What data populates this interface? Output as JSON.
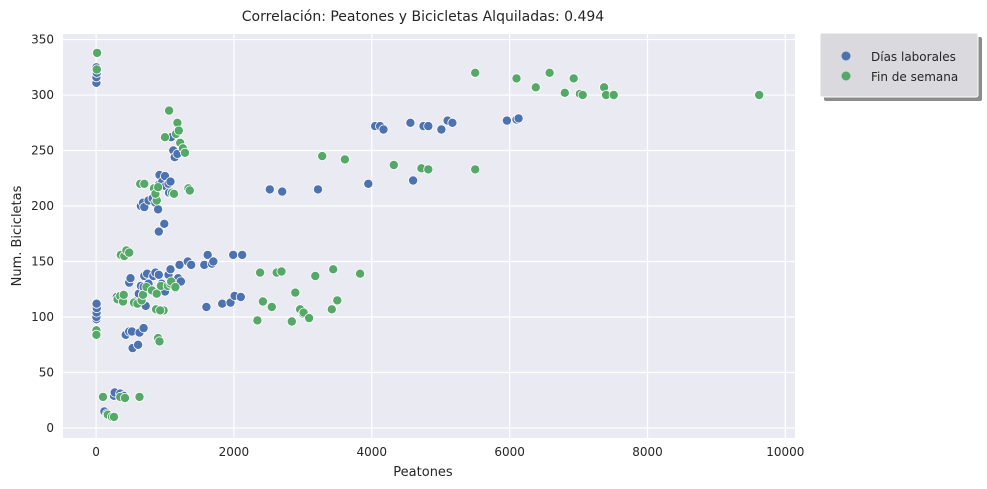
{
  "chart_data": {
    "type": "scatter",
    "title": "Correlación: Peatones y Bicicletas Alquiladas: 0.494",
    "xlabel": "Peatones",
    "ylabel": "Num. Bicicletas",
    "xlim": [
      -480,
      10140
    ],
    "ylim": [
      -9,
      355
    ],
    "xticks": [
      0,
      2000,
      4000,
      6000,
      8000,
      10000
    ],
    "yticks": [
      0,
      50,
      100,
      150,
      200,
      250,
      300,
      350
    ],
    "grid": true,
    "legend_position": "outside-top-right",
    "colors": {
      "weekday": "#4c72b0",
      "weekend": "#55a868",
      "plot_bg": "#eaeaf2",
      "grid": "#ffffff"
    },
    "series": [
      {
        "name": "Días laborales",
        "points": [
          [
            5,
            311
          ],
          [
            5,
            316
          ],
          [
            10,
            320
          ],
          [
            5,
            325
          ],
          [
            5,
            98
          ],
          [
            5,
            100
          ],
          [
            8,
            104
          ],
          [
            10,
            108
          ],
          [
            8,
            112
          ],
          [
            120,
            15
          ],
          [
            160,
            13
          ],
          [
            260,
            29
          ],
          [
            270,
            32
          ],
          [
            350,
            31
          ],
          [
            400,
            29
          ],
          [
            430,
            84
          ],
          [
            480,
            87
          ],
          [
            520,
            87
          ],
          [
            530,
            72
          ],
          [
            610,
            75
          ],
          [
            630,
            86
          ],
          [
            690,
            90
          ],
          [
            300,
            118
          ],
          [
            350,
            119
          ],
          [
            480,
            131
          ],
          [
            500,
            135
          ],
          [
            570,
            114
          ],
          [
            620,
            121
          ],
          [
            650,
            128
          ],
          [
            690,
            127
          ],
          [
            700,
            137
          ],
          [
            720,
            110
          ],
          [
            740,
            139
          ],
          [
            760,
            130
          ],
          [
            830,
            137
          ],
          [
            860,
            140
          ],
          [
            910,
            138
          ],
          [
            950,
            130
          ],
          [
            1000,
            123
          ],
          [
            1050,
            138
          ],
          [
            1080,
            143
          ],
          [
            1120,
            130
          ],
          [
            1150,
            126
          ],
          [
            1190,
            135
          ],
          [
            1230,
            132
          ],
          [
            1210,
            147
          ],
          [
            1330,
            150
          ],
          [
            1380,
            147
          ],
          [
            1570,
            147
          ],
          [
            1620,
            156
          ],
          [
            1680,
            148
          ],
          [
            1700,
            150
          ],
          [
            1600,
            109
          ],
          [
            1830,
            112
          ],
          [
            1950,
            113
          ],
          [
            2010,
            119
          ],
          [
            2100,
            118
          ],
          [
            1990,
            156
          ],
          [
            2120,
            156
          ],
          [
            650,
            200
          ],
          [
            680,
            203
          ],
          [
            700,
            199
          ],
          [
            760,
            205
          ],
          [
            820,
            207
          ],
          [
            860,
            203
          ],
          [
            900,
            197
          ],
          [
            910,
            219
          ],
          [
            920,
            228
          ],
          [
            960,
            222
          ],
          [
            1000,
            227
          ],
          [
            1010,
            218
          ],
          [
            1050,
            220
          ],
          [
            1080,
            222
          ],
          [
            1090,
            262
          ],
          [
            1120,
            250
          ],
          [
            1140,
            244
          ],
          [
            1180,
            247
          ],
          [
            1200,
            268
          ],
          [
            910,
            177
          ],
          [
            990,
            184
          ],
          [
            1060,
            212
          ],
          [
            2520,
            215
          ],
          [
            2700,
            213
          ],
          [
            3220,
            215
          ],
          [
            3950,
            220
          ],
          [
            4050,
            272
          ],
          [
            4120,
            272
          ],
          [
            4170,
            269
          ],
          [
            4560,
            275
          ],
          [
            4600,
            223
          ],
          [
            4750,
            272
          ],
          [
            4820,
            272
          ],
          [
            5010,
            269
          ],
          [
            5100,
            277
          ],
          [
            5170,
            275
          ],
          [
            5960,
            277
          ],
          [
            6100,
            278
          ],
          [
            6130,
            279
          ]
        ]
      },
      {
        "name": "Fin de semana",
        "points": [
          [
            15,
            338
          ],
          [
            15,
            323
          ],
          [
            10,
            323
          ],
          [
            5,
            88
          ],
          [
            5,
            84
          ],
          [
            100,
            28
          ],
          [
            170,
            12
          ],
          [
            230,
            10
          ],
          [
            260,
            10
          ],
          [
            350,
            28
          ],
          [
            420,
            27
          ],
          [
            630,
            28
          ],
          [
            310,
            116
          ],
          [
            350,
            119
          ],
          [
            390,
            114
          ],
          [
            400,
            120
          ],
          [
            360,
            156
          ],
          [
            410,
            155
          ],
          [
            440,
            160
          ],
          [
            480,
            158
          ],
          [
            550,
            113
          ],
          [
            600,
            112
          ],
          [
            660,
            115
          ],
          [
            680,
            120
          ],
          [
            730,
            127
          ],
          [
            810,
            124
          ],
          [
            880,
            121
          ],
          [
            900,
            81
          ],
          [
            920,
            78
          ],
          [
            940,
            128
          ],
          [
            980,
            106
          ],
          [
            1040,
            128
          ],
          [
            1080,
            130
          ],
          [
            1090,
            132
          ],
          [
            1150,
            127
          ],
          [
            870,
            107
          ],
          [
            930,
            106
          ],
          [
            640,
            220
          ],
          [
            700,
            220
          ],
          [
            840,
            216
          ],
          [
            880,
            205
          ],
          [
            860,
            211
          ],
          [
            900,
            217
          ],
          [
            1000,
            262
          ],
          [
            1060,
            286
          ],
          [
            1100,
            212
          ],
          [
            1130,
            211
          ],
          [
            1160,
            265
          ],
          [
            1180,
            275
          ],
          [
            1200,
            268
          ],
          [
            1220,
            257
          ],
          [
            1260,
            252
          ],
          [
            1290,
            248
          ],
          [
            1340,
            216
          ],
          [
            1360,
            214
          ],
          [
            2340,
            97
          ],
          [
            2380,
            140
          ],
          [
            2420,
            114
          ],
          [
            2550,
            109
          ],
          [
            2620,
            140
          ],
          [
            2690,
            141
          ],
          [
            2840,
            96
          ],
          [
            2890,
            122
          ],
          [
            2960,
            107
          ],
          [
            3000,
            103
          ],
          [
            3010,
            104
          ],
          [
            3090,
            99
          ],
          [
            3180,
            137
          ],
          [
            3280,
            245
          ],
          [
            3420,
            107
          ],
          [
            3440,
            143
          ],
          [
            3500,
            115
          ],
          [
            3610,
            242
          ],
          [
            3830,
            139
          ],
          [
            4320,
            237
          ],
          [
            4720,
            234
          ],
          [
            4820,
            233
          ],
          [
            5500,
            233
          ],
          [
            5500,
            320
          ],
          [
            6100,
            315
          ],
          [
            6380,
            307
          ],
          [
            6580,
            320
          ],
          [
            6800,
            302
          ],
          [
            6930,
            315
          ],
          [
            7020,
            301
          ],
          [
            7060,
            300
          ],
          [
            7370,
            307
          ],
          [
            7400,
            300
          ],
          [
            7510,
            300
          ],
          [
            9620,
            300
          ]
        ]
      }
    ]
  }
}
